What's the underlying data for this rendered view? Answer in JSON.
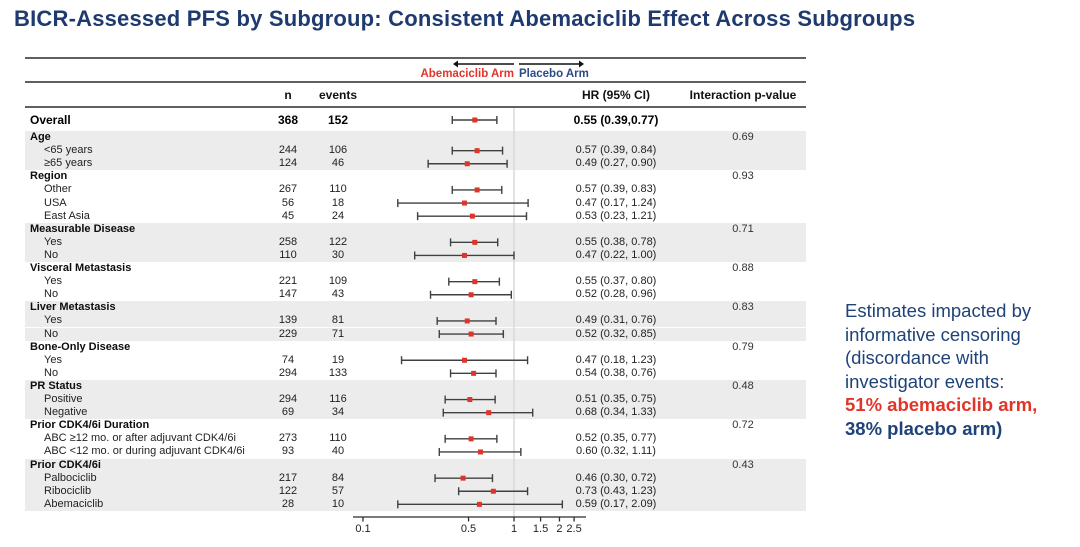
{
  "title": "BICR-Assessed PFS by Subgroup: Consistent Abemaciclib Effect Across Subgroups",
  "colors": {
    "title_navy": "#1e3a6e",
    "annotation_navy": "#1f4278",
    "red": "#e03528",
    "placebo_navy": "#2c4a86",
    "row_shade": "#ececec",
    "bar_line": "#404040",
    "marker_red": "#e0342b",
    "ref_line": "#d9d9d9",
    "rule": "#2b2b2b"
  },
  "legend": {
    "left_label": "Abemaciclib Arm",
    "right_label": "Placebo Arm"
  },
  "columns": {
    "n": "n",
    "events": "events",
    "hr": "HR (95% CI)",
    "p": "Interaction p-value"
  },
  "chart_data": {
    "type": "forest",
    "scale": "log10",
    "ref_line": 1,
    "x_axis": {
      "ticks": [
        0.1,
        0.5,
        1,
        1.5,
        2,
        2.5
      ],
      "tick_labels": [
        "0.1",
        "0.5",
        "1",
        "1.5",
        "2",
        "2.5"
      ],
      "xlim": [
        0.09,
        2.7
      ]
    },
    "rows": [
      {
        "type": "overall",
        "label": "Overall",
        "n": "368",
        "events": "152",
        "hr_text": "0.55 (0.39,0.77)",
        "hr": 0.55,
        "lo": 0.39,
        "hi": 0.77,
        "shaded": false
      },
      {
        "type": "group",
        "label": "Age",
        "p": "0.69",
        "shaded": true
      },
      {
        "type": "item",
        "label": "<65 years",
        "n": "244",
        "events": "106",
        "hr_text": "0.57 (0.39, 0.84)",
        "hr": 0.57,
        "lo": 0.39,
        "hi": 0.84,
        "shaded": true
      },
      {
        "type": "item",
        "label": "≥65 years",
        "n": "124",
        "events": "46",
        "hr_text": "0.49 (0.27, 0.90)",
        "hr": 0.49,
        "lo": 0.27,
        "hi": 0.9,
        "shaded": true
      },
      {
        "type": "group",
        "label": "Region",
        "p": "0.93",
        "shaded": false
      },
      {
        "type": "item",
        "label": "Other",
        "n": "267",
        "events": "110",
        "hr_text": "0.57 (0.39, 0.83)",
        "hr": 0.57,
        "lo": 0.39,
        "hi": 0.83,
        "shaded": false
      },
      {
        "type": "item",
        "label": "USA",
        "n": "56",
        "events": "18",
        "hr_text": "0.47 (0.17, 1.24)",
        "hr": 0.47,
        "lo": 0.17,
        "hi": 1.24,
        "shaded": false
      },
      {
        "type": "item",
        "label": "East Asia",
        "n": "45",
        "events": "24",
        "hr_text": "0.53 (0.23, 1.21)",
        "hr": 0.53,
        "lo": 0.23,
        "hi": 1.21,
        "shaded": false
      },
      {
        "type": "group",
        "label": "Measurable Disease",
        "p": "0.71",
        "shaded": true
      },
      {
        "type": "item",
        "label": "Yes",
        "n": "258",
        "events": "122",
        "hr_text": "0.55 (0.38, 0.78)",
        "hr": 0.55,
        "lo": 0.38,
        "hi": 0.78,
        "shaded": true
      },
      {
        "type": "item",
        "label": "No",
        "n": "110",
        "events": "30",
        "hr_text": "0.47 (0.22, 1.00)",
        "hr": 0.47,
        "lo": 0.22,
        "hi": 1.0,
        "shaded": true
      },
      {
        "type": "group",
        "label": "Visceral Metastasis",
        "p": "0.88",
        "shaded": false
      },
      {
        "type": "item",
        "label": "Yes",
        "n": "221",
        "events": "109",
        "hr_text": "0.55 (0.37, 0.80)",
        "hr": 0.55,
        "lo": 0.37,
        "hi": 0.8,
        "shaded": false
      },
      {
        "type": "item",
        "label": "No",
        "n": "147",
        "events": "43",
        "hr_text": "0.52 (0.28, 0.96)",
        "hr": 0.52,
        "lo": 0.28,
        "hi": 0.96,
        "shaded": false
      },
      {
        "type": "group",
        "label": "Liver Metastasis",
        "p": "0.83",
        "shaded": true
      },
      {
        "type": "item",
        "label": "Yes",
        "n": "139",
        "events": "81",
        "hr_text": "0.49 (0.31, 0.76)",
        "hr": 0.49,
        "lo": 0.31,
        "hi": 0.76,
        "shaded": true
      },
      {
        "type": "item",
        "label": "No",
        "n": "229",
        "events": "71",
        "hr_text": "0.52 (0.32, 0.85)",
        "hr": 0.52,
        "lo": 0.32,
        "hi": 0.85,
        "shaded": true
      },
      {
        "type": "group",
        "label": "Bone-Only Disease",
        "p": "0.79",
        "shaded": false
      },
      {
        "type": "item",
        "label": "Yes",
        "n": "74",
        "events": "19",
        "hr_text": "0.47 (0.18, 1.23)",
        "hr": 0.47,
        "lo": 0.18,
        "hi": 1.23,
        "shaded": false
      },
      {
        "type": "item",
        "label": "No",
        "n": "294",
        "events": "133",
        "hr_text": "0.54 (0.38, 0.76)",
        "hr": 0.54,
        "lo": 0.38,
        "hi": 0.76,
        "shaded": false
      },
      {
        "type": "group",
        "label": "PR Status",
        "p": "0.48",
        "shaded": true
      },
      {
        "type": "item",
        "label": "Positive",
        "n": "294",
        "events": "116",
        "hr_text": "0.51 (0.35, 0.75)",
        "hr": 0.51,
        "lo": 0.35,
        "hi": 0.75,
        "shaded": true
      },
      {
        "type": "item",
        "label": "Negative",
        "n": "69",
        "events": "34",
        "hr_text": "0.68 (0.34, 1.33)",
        "hr": 0.68,
        "lo": 0.34,
        "hi": 1.33,
        "shaded": true
      },
      {
        "type": "group",
        "label": "Prior CDK4/6i Duration",
        "p": "0.72",
        "shaded": false
      },
      {
        "type": "item",
        "label": "ABC ≥12 mo. or after adjuvant CDK4/6i",
        "n": "273",
        "events": "110",
        "hr_text": "0.52 (0.35, 0.77)",
        "hr": 0.52,
        "lo": 0.35,
        "hi": 0.77,
        "shaded": false
      },
      {
        "type": "item",
        "label": "ABC <12 mo. or during adjuvant CDK4/6i",
        "n": "93",
        "events": "40",
        "hr_text": "0.60 (0.32, 1.11)",
        "hr": 0.6,
        "lo": 0.32,
        "hi": 1.11,
        "shaded": false
      },
      {
        "type": "group",
        "label": "Prior CDK4/6i",
        "p": "0.43",
        "shaded": true
      },
      {
        "type": "item",
        "label": "Palbociclib",
        "n": "217",
        "events": "84",
        "hr_text": "0.46 (0.30, 0.72)",
        "hr": 0.46,
        "lo": 0.3,
        "hi": 0.72,
        "shaded": true
      },
      {
        "type": "item",
        "label": "Ribociclib",
        "n": "122",
        "events": "57",
        "hr_text": "0.73 (0.43, 1.23)",
        "hr": 0.73,
        "lo": 0.43,
        "hi": 1.23,
        "shaded": true
      },
      {
        "type": "item",
        "label": "Abemaciclib",
        "n": "28",
        "events": "10",
        "hr_text": "0.59 (0.17, 2.09)",
        "hr": 0.59,
        "lo": 0.17,
        "hi": 2.09,
        "shaded": true
      }
    ]
  },
  "annotation": {
    "lines": [
      {
        "text": "Estimates impacted by",
        "style": "navy"
      },
      {
        "text": "informative censoring",
        "style": "navy"
      },
      {
        "text": "(discordance with",
        "style": "navy"
      },
      {
        "text": "investigator events:",
        "style": "navy"
      },
      {
        "text": "51% abemaciclib arm,",
        "style": "red-bold"
      },
      {
        "text": "38% placebo arm)",
        "style": "navy-bold"
      }
    ]
  }
}
